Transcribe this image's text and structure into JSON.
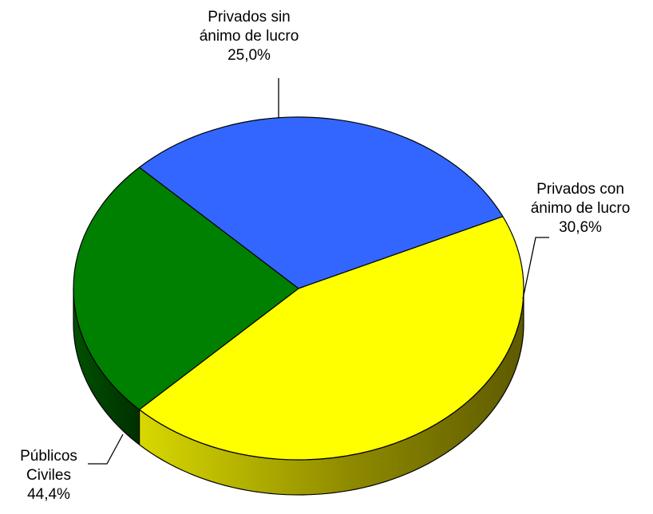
{
  "chart_data": {
    "type": "pie",
    "title": "",
    "legend": "none",
    "slices": [
      {
        "name": "Privados sin ánimo de lucro",
        "label_lines": [
          "Privados sin",
          "ánimo de lucro",
          "25,0%"
        ],
        "percent_label": "25,0%",
        "value": 25.0,
        "color": "#008000",
        "side_color": "#004a00"
      },
      {
        "name": "Privados con ánimo de lucro",
        "label_lines": [
          "Privados con",
          "ánimo de lucro",
          "30,6%"
        ],
        "percent_label": "30,6%",
        "value": 30.6,
        "color": "#3366ff",
        "side_color": "#16286a"
      },
      {
        "name": "Públicos Civiles",
        "label_lines": [
          "Públicos",
          "Civiles",
          "44,4%"
        ],
        "percent_label": "44,4%",
        "value": 44.4,
        "color": "#ffff00",
        "side_color": "#9a9a00"
      }
    ]
  }
}
